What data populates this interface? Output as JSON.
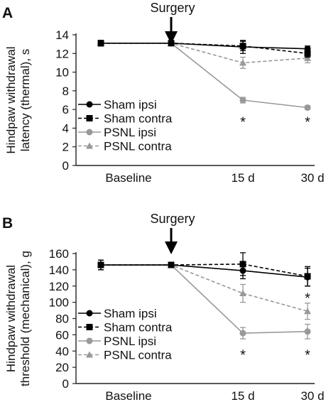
{
  "chart_data": [
    {
      "type": "line",
      "panel_label": "A",
      "annotation": "Surgery",
      "ylabel": "Hindpaw withdrawal latency (thermal), s",
      "ylabel_lines": [
        "Hindpaw withdrawal",
        "latency (thermal), s"
      ],
      "xlabel": "",
      "categories": [
        "Baseline",
        "",
        "15 d",
        "30 d"
      ],
      "ylim": [
        0,
        14
      ],
      "yticks": [
        0,
        2,
        4,
        6,
        8,
        10,
        12,
        14
      ],
      "tick_labels": [
        "0",
        "2",
        "4",
        "6",
        "8",
        "10",
        "12",
        "14"
      ],
      "grid": false,
      "legend_position": "left-middle",
      "series": [
        {
          "name": "Sham ipsi",
          "values": [
            13.1,
            13.1,
            12.7,
            12.5
          ],
          "errors": [
            0.3,
            0.2,
            0.7,
            0.3
          ],
          "color": "#000000",
          "marker": "circle",
          "dashed": false
        },
        {
          "name": "Sham contra",
          "values": [
            13.1,
            13.1,
            12.8,
            12.0
          ],
          "errors": [
            0.3,
            0.2,
            0.5,
            0.4
          ],
          "color": "#000000",
          "marker": "square",
          "dashed": true
        },
        {
          "name": "PSNL ipsi",
          "values": [
            13.1,
            13.1,
            7.0,
            6.2
          ],
          "errors": [
            0.3,
            0.2,
            0.3,
            0.2
          ],
          "color": "#999999",
          "marker": "circle",
          "dashed": false
        },
        {
          "name": "PSNL contra",
          "values": [
            13.1,
            13.1,
            11.0,
            11.5
          ],
          "errors": [
            0.3,
            0.2,
            0.6,
            0.5
          ],
          "color": "#999999",
          "marker": "triangle",
          "dashed": true
        }
      ],
      "significance": [
        {
          "category": "15 d",
          "y": 4.9,
          "text": "*"
        },
        {
          "category": "30 d",
          "y": 4.9,
          "text": "*"
        }
      ]
    },
    {
      "type": "line",
      "panel_label": "B",
      "annotation": "Surgery",
      "ylabel": "Hindpaw withdrawal threshold (mechanical), g",
      "ylabel_lines": [
        "Hindpaw withdrawal",
        "threshold (mechanical), g"
      ],
      "xlabel": "",
      "categories": [
        "Baseline",
        "",
        "15 d",
        "30 d"
      ],
      "ylim": [
        0,
        160
      ],
      "yticks": [
        0,
        20,
        40,
        60,
        80,
        100,
        120,
        140,
        160
      ],
      "tick_labels": [
        "0",
        "20",
        "40",
        "60",
        "80",
        "100",
        "120",
        "140",
        "160"
      ],
      "grid": false,
      "legend_position": "left-middle",
      "series": [
        {
          "name": "Sham ipsi",
          "values": [
            146,
            146,
            139,
            131
          ],
          "errors": [
            6,
            3,
            10,
            11
          ],
          "color": "#000000",
          "marker": "circle",
          "dashed": false
        },
        {
          "name": "Sham contra",
          "values": [
            146,
            146,
            147,
            132
          ],
          "errors": [
            6,
            3,
            14,
            12
          ],
          "color": "#000000",
          "marker": "square",
          "dashed": true
        },
        {
          "name": "PSNL ipsi",
          "values": [
            146,
            146,
            62,
            64
          ],
          "errors": [
            6,
            3,
            7,
            9
          ],
          "color": "#999999",
          "marker": "circle",
          "dashed": false
        },
        {
          "name": "PSNL contra",
          "values": [
            146,
            146,
            111,
            89
          ],
          "errors": [
            6,
            3,
            11,
            10
          ],
          "color": "#999999",
          "marker": "triangle",
          "dashed": true
        }
      ],
      "significance": [
        {
          "category": "15 d",
          "y": 38,
          "text": "*"
        },
        {
          "category": "30 d",
          "y": 38,
          "text": "*"
        },
        {
          "category": "30 d",
          "y": 108,
          "text": "*"
        }
      ]
    }
  ]
}
